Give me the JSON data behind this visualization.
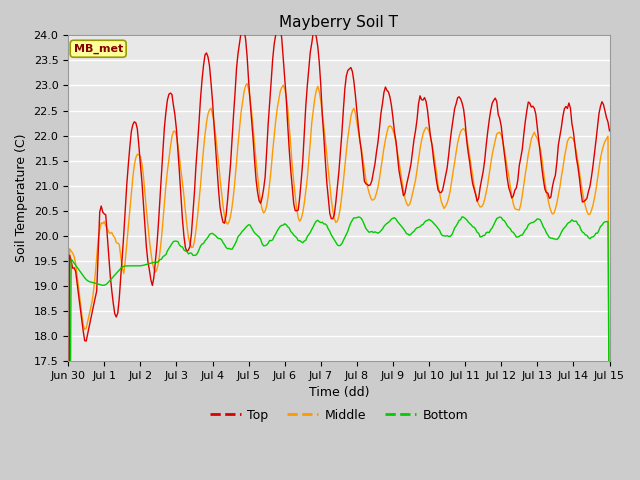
{
  "title": "Mayberry Soil T",
  "xlabel": "Time (dd)",
  "ylabel": "Soil Temperature (C)",
  "ylim": [
    17.5,
    24.0
  ],
  "yticks": [
    17.5,
    18.0,
    18.5,
    19.0,
    19.5,
    20.0,
    20.5,
    21.0,
    21.5,
    22.0,
    22.5,
    23.0,
    23.5,
    24.0
  ],
  "colors": {
    "Top": "#dd0000",
    "Middle": "#ff9900",
    "Bottom": "#00cc00"
  },
  "legend_label": "MB_met",
  "legend_box_facecolor": "#ffff99",
  "legend_box_edgecolor": "#999900",
  "legend_text_color": "#880000",
  "fig_facecolor": "#cccccc",
  "ax_facecolor": "#e8e8e8",
  "grid_color": "#ffffff",
  "xtick_labels": [
    "Jun 30",
    "Jul 1",
    "Jul 2",
    "Jul 3",
    "Jul 4",
    "Jul 5",
    "Jul 6",
    "Jul 7",
    "Jul 8",
    "Jul 9",
    "Jul 10",
    "Jul 11",
    "Jul 12",
    "Jul 13",
    "Jul 14",
    "Jul 15"
  ],
  "title_fontsize": 11,
  "axis_label_fontsize": 9,
  "tick_fontsize": 8
}
